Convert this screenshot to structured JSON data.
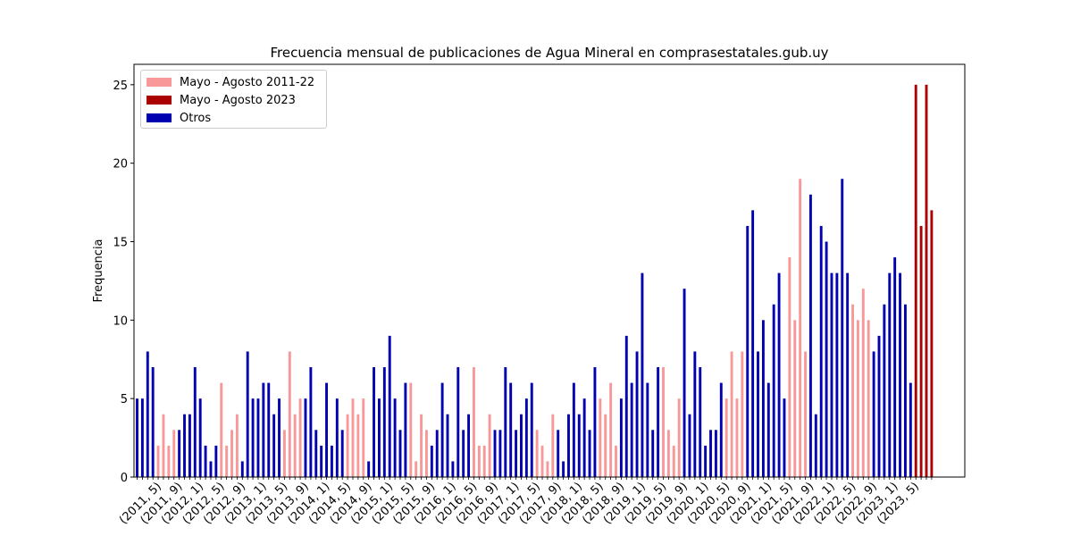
{
  "chart_data": {
    "type": "bar",
    "title": "Frecuencia mensual de publicaciones de Agua Mineral en comprasestatales.gub.uy",
    "xlabel": "",
    "ylabel": "Frequencia",
    "ylim": [
      0,
      26.3
    ],
    "yticks": [
      0,
      5,
      10,
      15,
      20,
      25
    ],
    "grid": false,
    "legend_position": "upper-left",
    "colors": {
      "mayo_agosto_2011_22": "#f89898",
      "mayo_agosto_2023": "#aa0000",
      "otros": "#0000b0"
    },
    "series": [
      {
        "name": "Mayo - Agosto 2011-22",
        "color_key": "mayo_agosto_2011_22"
      },
      {
        "name": "Mayo - Agosto 2023",
        "color_key": "mayo_agosto_2023"
      },
      {
        "name": "Otros",
        "color_key": "otros"
      }
    ],
    "categories": [
      "(2011, 1)",
      "(2011, 2)",
      "(2011, 3)",
      "(2011, 4)",
      "(2011, 5)",
      "(2011, 6)",
      "(2011, 7)",
      "(2011, 8)",
      "(2011, 9)",
      "(2011, 10)",
      "(2011, 11)",
      "(2011, 12)",
      "(2012, 1)",
      "(2012, 2)",
      "(2012, 3)",
      "(2012, 4)",
      "(2012, 5)",
      "(2012, 6)",
      "(2012, 7)",
      "(2012, 8)",
      "(2012, 9)",
      "(2012, 10)",
      "(2012, 11)",
      "(2012, 12)",
      "(2013, 1)",
      "(2013, 2)",
      "(2013, 3)",
      "(2013, 4)",
      "(2013, 5)",
      "(2013, 6)",
      "(2013, 7)",
      "(2013, 8)",
      "(2013, 9)",
      "(2013, 10)",
      "(2013, 11)",
      "(2013, 12)",
      "(2014, 1)",
      "(2014, 2)",
      "(2014, 3)",
      "(2014, 4)",
      "(2014, 5)",
      "(2014, 6)",
      "(2014, 7)",
      "(2014, 8)",
      "(2014, 9)",
      "(2014, 10)",
      "(2014, 11)",
      "(2014, 12)",
      "(2015, 1)",
      "(2015, 2)",
      "(2015, 3)",
      "(2015, 4)",
      "(2015, 5)",
      "(2015, 6)",
      "(2015, 7)",
      "(2015, 8)",
      "(2015, 9)",
      "(2015, 10)",
      "(2015, 11)",
      "(2015, 12)",
      "(2016, 1)",
      "(2016, 2)",
      "(2016, 3)",
      "(2016, 4)",
      "(2016, 5)",
      "(2016, 6)",
      "(2016, 7)",
      "(2016, 8)",
      "(2016, 9)",
      "(2016, 10)",
      "(2016, 11)",
      "(2016, 12)",
      "(2017, 1)",
      "(2017, 2)",
      "(2017, 3)",
      "(2017, 4)",
      "(2017, 5)",
      "(2017, 6)",
      "(2017, 7)",
      "(2017, 8)",
      "(2017, 9)",
      "(2017, 10)",
      "(2017, 11)",
      "(2017, 12)",
      "(2018, 1)",
      "(2018, 2)",
      "(2018, 3)",
      "(2018, 4)",
      "(2018, 5)",
      "(2018, 6)",
      "(2018, 7)",
      "(2018, 8)",
      "(2018, 9)",
      "(2018, 10)",
      "(2018, 11)",
      "(2018, 12)",
      "(2019, 1)",
      "(2019, 2)",
      "(2019, 3)",
      "(2019, 4)",
      "(2019, 5)",
      "(2019, 6)",
      "(2019, 7)",
      "(2019, 8)",
      "(2019, 9)",
      "(2019, 10)",
      "(2019, 11)",
      "(2019, 12)",
      "(2020, 1)",
      "(2020, 2)",
      "(2020, 3)",
      "(2020, 4)",
      "(2020, 5)",
      "(2020, 6)",
      "(2020, 7)",
      "(2020, 8)",
      "(2020, 9)",
      "(2020, 10)",
      "(2020, 11)",
      "(2020, 12)",
      "(2021, 1)",
      "(2021, 2)",
      "(2021, 3)",
      "(2021, 4)",
      "(2021, 5)",
      "(2021, 6)",
      "(2021, 7)",
      "(2021, 8)",
      "(2021, 9)",
      "(2021, 10)",
      "(2021, 11)",
      "(2021, 12)",
      "(2022, 1)",
      "(2022, 2)",
      "(2022, 3)",
      "(2022, 4)",
      "(2022, 5)",
      "(2022, 6)",
      "(2022, 7)",
      "(2022, 8)",
      "(2022, 9)",
      "(2022, 10)",
      "(2022, 11)",
      "(2022, 12)",
      "(2023, 1)",
      "(2023, 2)",
      "(2023, 3)",
      "(2023, 4)",
      "(2023, 5)",
      "(2023, 6)",
      "(2023, 7)",
      "(2023, 8)"
    ],
    "values": [
      5,
      5,
      8,
      7,
      2,
      4,
      2,
      3,
      3,
      4,
      4,
      7,
      5,
      2,
      1,
      2,
      6,
      2,
      3,
      4,
      1,
      8,
      5,
      5,
      6,
      6,
      4,
      5,
      3,
      8,
      4,
      5,
      5,
      7,
      3,
      2,
      6,
      2,
      5,
      3,
      4,
      5,
      4,
      5,
      1,
      7,
      5,
      7,
      9,
      5,
      3,
      6,
      6,
      1,
      4,
      3,
      2,
      3,
      6,
      4,
      1,
      7,
      3,
      4,
      7,
      2,
      2,
      4,
      3,
      3,
      7,
      6,
      3,
      4,
      5,
      6,
      3,
      2,
      1,
      4,
      3,
      1,
      4,
      6,
      4,
      5,
      3,
      7,
      5,
      4,
      6,
      2,
      5,
      9,
      6,
      8,
      13,
      6,
      3,
      7,
      7,
      3,
      2,
      5,
      12,
      4,
      8,
      7,
      2,
      3,
      3,
      6,
      5,
      8,
      5,
      8,
      16,
      17,
      8,
      10,
      6,
      11,
      13,
      5,
      14,
      10,
      19,
      8,
      18,
      4,
      16,
      15,
      13,
      13,
      19,
      13,
      11,
      10,
      12,
      10,
      8,
      9,
      11,
      13,
      14,
      13,
      11,
      6,
      25,
      16,
      25,
      17
    ],
    "bar_group": [
      "o",
      "o",
      "o",
      "o",
      "p",
      "p",
      "p",
      "p",
      "o",
      "o",
      "o",
      "o",
      "o",
      "o",
      "o",
      "o",
      "p",
      "p",
      "p",
      "p",
      "o",
      "o",
      "o",
      "o",
      "o",
      "o",
      "o",
      "o",
      "p",
      "p",
      "p",
      "p",
      "o",
      "o",
      "o",
      "o",
      "o",
      "o",
      "o",
      "o",
      "p",
      "p",
      "p",
      "p",
      "o",
      "o",
      "o",
      "o",
      "o",
      "o",
      "o",
      "o",
      "p",
      "p",
      "p",
      "p",
      "o",
      "o",
      "o",
      "o",
      "o",
      "o",
      "o",
      "o",
      "p",
      "p",
      "p",
      "p",
      "o",
      "o",
      "o",
      "o",
      "o",
      "o",
      "o",
      "o",
      "p",
      "p",
      "p",
      "p",
      "o",
      "o",
      "o",
      "o",
      "o",
      "o",
      "o",
      "o",
      "p",
      "p",
      "p",
      "p",
      "o",
      "o",
      "o",
      "o",
      "o",
      "o",
      "o",
      "o",
      "p",
      "p",
      "p",
      "p",
      "o",
      "o",
      "o",
      "o",
      "o",
      "o",
      "o",
      "o",
      "p",
      "p",
      "p",
      "p",
      "o",
      "o",
      "o",
      "o",
      "o",
      "o",
      "o",
      "o",
      "p",
      "p",
      "p",
      "p",
      "o",
      "o",
      "o",
      "o",
      "o",
      "o",
      "o",
      "o",
      "p",
      "p",
      "p",
      "p",
      "o",
      "o",
      "o",
      "o",
      "o",
      "o",
      "o",
      "o",
      "r",
      "r",
      "r",
      "r"
    ],
    "xtick_labels": [
      "(2011, 5)",
      "(2011, 9)",
      "(2012, 1)",
      "(2012, 5)",
      "(2012, 9)",
      "(2013, 1)",
      "(2013, 5)",
      "(2013, 9)",
      "(2014, 1)",
      "(2014, 5)",
      "(2014, 9)",
      "(2015, 1)",
      "(2015, 5)",
      "(2015, 9)",
      "(2016, 1)",
      "(2016, 5)",
      "(2016, 9)",
      "(2017, 1)",
      "(2017, 5)",
      "(2017, 9)",
      "(2018, 1)",
      "(2018, 5)",
      "(2018, 9)",
      "(2019, 1)",
      "(2019, 5)",
      "(2019, 9)",
      "(2020, 1)",
      "(2020, 5)",
      "(2020, 9)",
      "(2021, 1)",
      "(2021, 5)",
      "(2021, 9)",
      "(2022, 1)",
      "(2022, 5)",
      "(2022, 9)",
      "(2023, 1)",
      "(2023, 5)"
    ]
  }
}
